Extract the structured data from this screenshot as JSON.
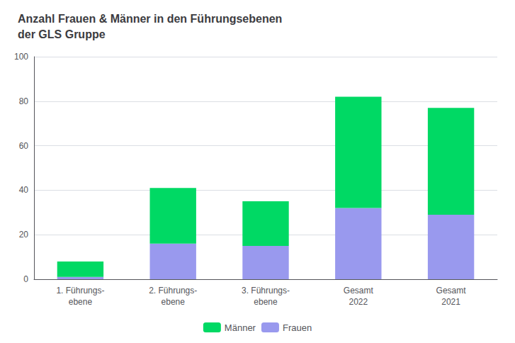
{
  "chart_data": {
    "type": "bar",
    "title": "Anzahl Frauen & Männer in den Führungsebenen\nder GLS Gruppe",
    "categories": [
      "1. Führungs-\nebene",
      "2. Führungs-\nebene",
      "3. Führungs-\nebene",
      "Gesamt\n2022",
      "Gesamt\n2021"
    ],
    "series": [
      {
        "name": "Frauen",
        "color": "#9999ee",
        "values": [
          1,
          16,
          15,
          32,
          29
        ]
      },
      {
        "name": "Männer",
        "color": "#00d964",
        "values": [
          7,
          25,
          20,
          50,
          48
        ]
      }
    ],
    "stacked": true,
    "ylim": [
      0,
      100
    ],
    "yticks": [
      0,
      20,
      40,
      60,
      80,
      100
    ],
    "grid": true,
    "legend": "bottom"
  }
}
